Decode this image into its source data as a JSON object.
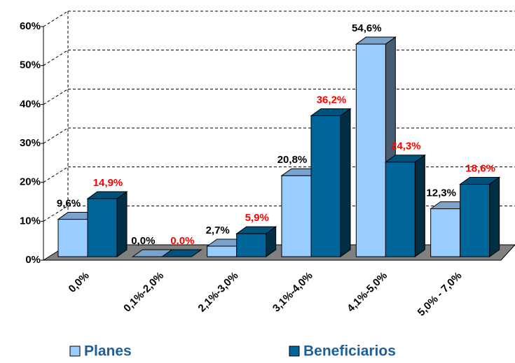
{
  "chart_data": {
    "type": "bar3d",
    "categories": [
      "0,0%",
      "0,1%-2,0%",
      "2,1%-3,0%",
      "3,1%-4,0%",
      "4,1%-5,0%",
      "5,0% - 7,0%"
    ],
    "series": [
      {
        "name": "Planes",
        "color": "#99ccff",
        "label_color": "#000000",
        "values": [
          9.6,
          0.0,
          2.7,
          20.8,
          54.6,
          12.3
        ],
        "value_labels": [
          "9,6%",
          "0,0%",
          "2,7%",
          "20,8%",
          "54,6%",
          "12,3%"
        ]
      },
      {
        "name": "Beneficiarios",
        "color": "#006699",
        "label_color": "#ff0000",
        "values": [
          14.9,
          0.0,
          5.9,
          36.2,
          24.3,
          18.6
        ],
        "value_labels": [
          "14,9%",
          "0,0%",
          "5,9%",
          "36,2%",
          "24,3%",
          "18,6%"
        ]
      }
    ],
    "ylim": [
      0,
      60
    ],
    "yticks": [
      {
        "value": 0,
        "label": "0%"
      },
      {
        "value": 10,
        "label": "10%"
      },
      {
        "value": 20,
        "label": "20%"
      },
      {
        "value": 30,
        "label": "30%"
      },
      {
        "value": 40,
        "label": "40%"
      },
      {
        "value": 50,
        "label": "50%"
      },
      {
        "value": 60,
        "label": "60%"
      }
    ],
    "grid": true,
    "legend": "bottom"
  }
}
